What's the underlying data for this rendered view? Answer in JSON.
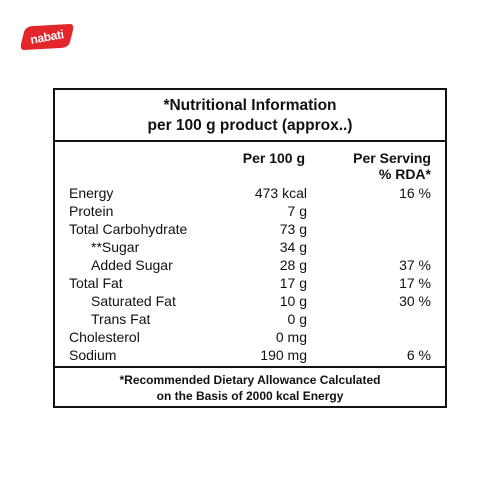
{
  "brand": {
    "logo_text": "nabati",
    "color": "#e3262c"
  },
  "label": {
    "title_line1": "*Nutritional Information",
    "title_line2": "per 100 g product (approx..)",
    "col_per100": "Per 100 g",
    "col_serving_line1": "Per Serving",
    "col_serving_line2": "% RDA*",
    "rows": [
      {
        "name": "Energy",
        "per100": "473 kcal",
        "serving": "16 %"
      },
      {
        "name": "Protein",
        "per100": "7 g",
        "serving": ""
      },
      {
        "name": "Total Carbohydrate",
        "per100": "73 g",
        "serving": ""
      },
      {
        "name": "**Sugar",
        "per100": "34 g",
        "serving": ""
      },
      {
        "name": "Added Sugar",
        "per100": "28 g",
        "serving": "37 %"
      },
      {
        "name": "Total Fat",
        "per100": "17 g",
        "serving": "17 %"
      },
      {
        "name": "Saturated Fat",
        "per100": "10 g",
        "serving": "30 %"
      },
      {
        "name": "Trans Fat",
        "per100": "0 g",
        "serving": ""
      },
      {
        "name": "Cholesterol",
        "per100": "0 mg",
        "serving": ""
      },
      {
        "name": "Sodium",
        "per100": "190 mg",
        "serving": "6 %"
      }
    ],
    "footer_line1": "*Recommended Dietary Allowance Calculated",
    "footer_line2": "on the Basis of 2000 kcal Energy"
  }
}
